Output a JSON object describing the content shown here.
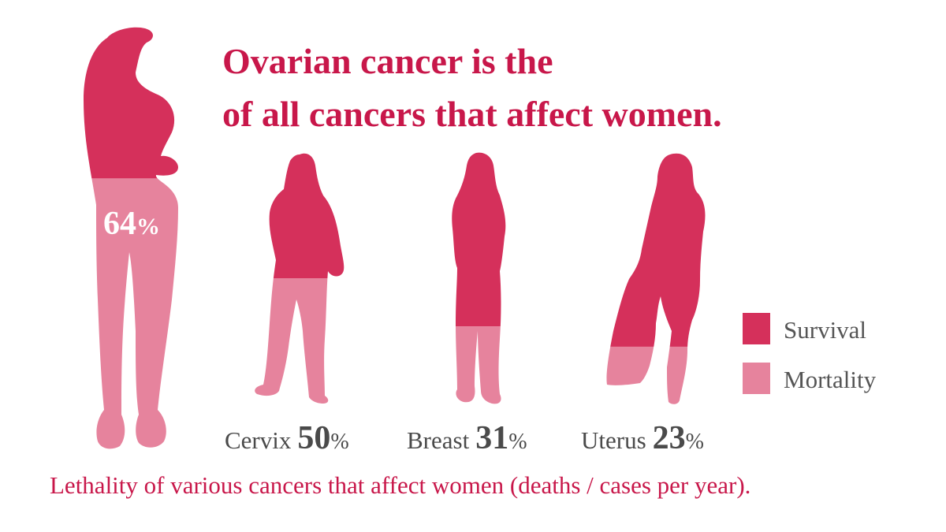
{
  "title": {
    "line1": "Ovarian cancer is the",
    "line2": "of all cancers that affect women."
  },
  "caption": "Lethality of various cancers that affect women (deaths / cases per year).",
  "colors": {
    "survival": "#d5305b",
    "mortality": "#e6839d",
    "title": "#c8174a",
    "label": "#4a4a4a"
  },
  "chart_data": {
    "type": "bar",
    "categories": [
      "Ovarian",
      "Cervix",
      "Breast",
      "Uterus"
    ],
    "series": [
      {
        "name": "Mortality",
        "values": [
          64,
          50,
          31,
          23
        ]
      },
      {
        "name": "Survival",
        "values": [
          36,
          50,
          69,
          77
        ]
      }
    ],
    "ylim": [
      0,
      100
    ],
    "percent_symbol": "%",
    "labels": {
      "main_value": "64",
      "items": [
        {
          "name": "Cervix",
          "value": "50"
        },
        {
          "name": "Breast",
          "value": "31"
        },
        {
          "name": "Uterus",
          "value": "23"
        }
      ]
    },
    "legend": {
      "placement": "right",
      "entries": [
        {
          "label": "Survival",
          "color": "#d5305b"
        },
        {
          "label": "Mortality",
          "color": "#e6839d"
        }
      ]
    }
  }
}
